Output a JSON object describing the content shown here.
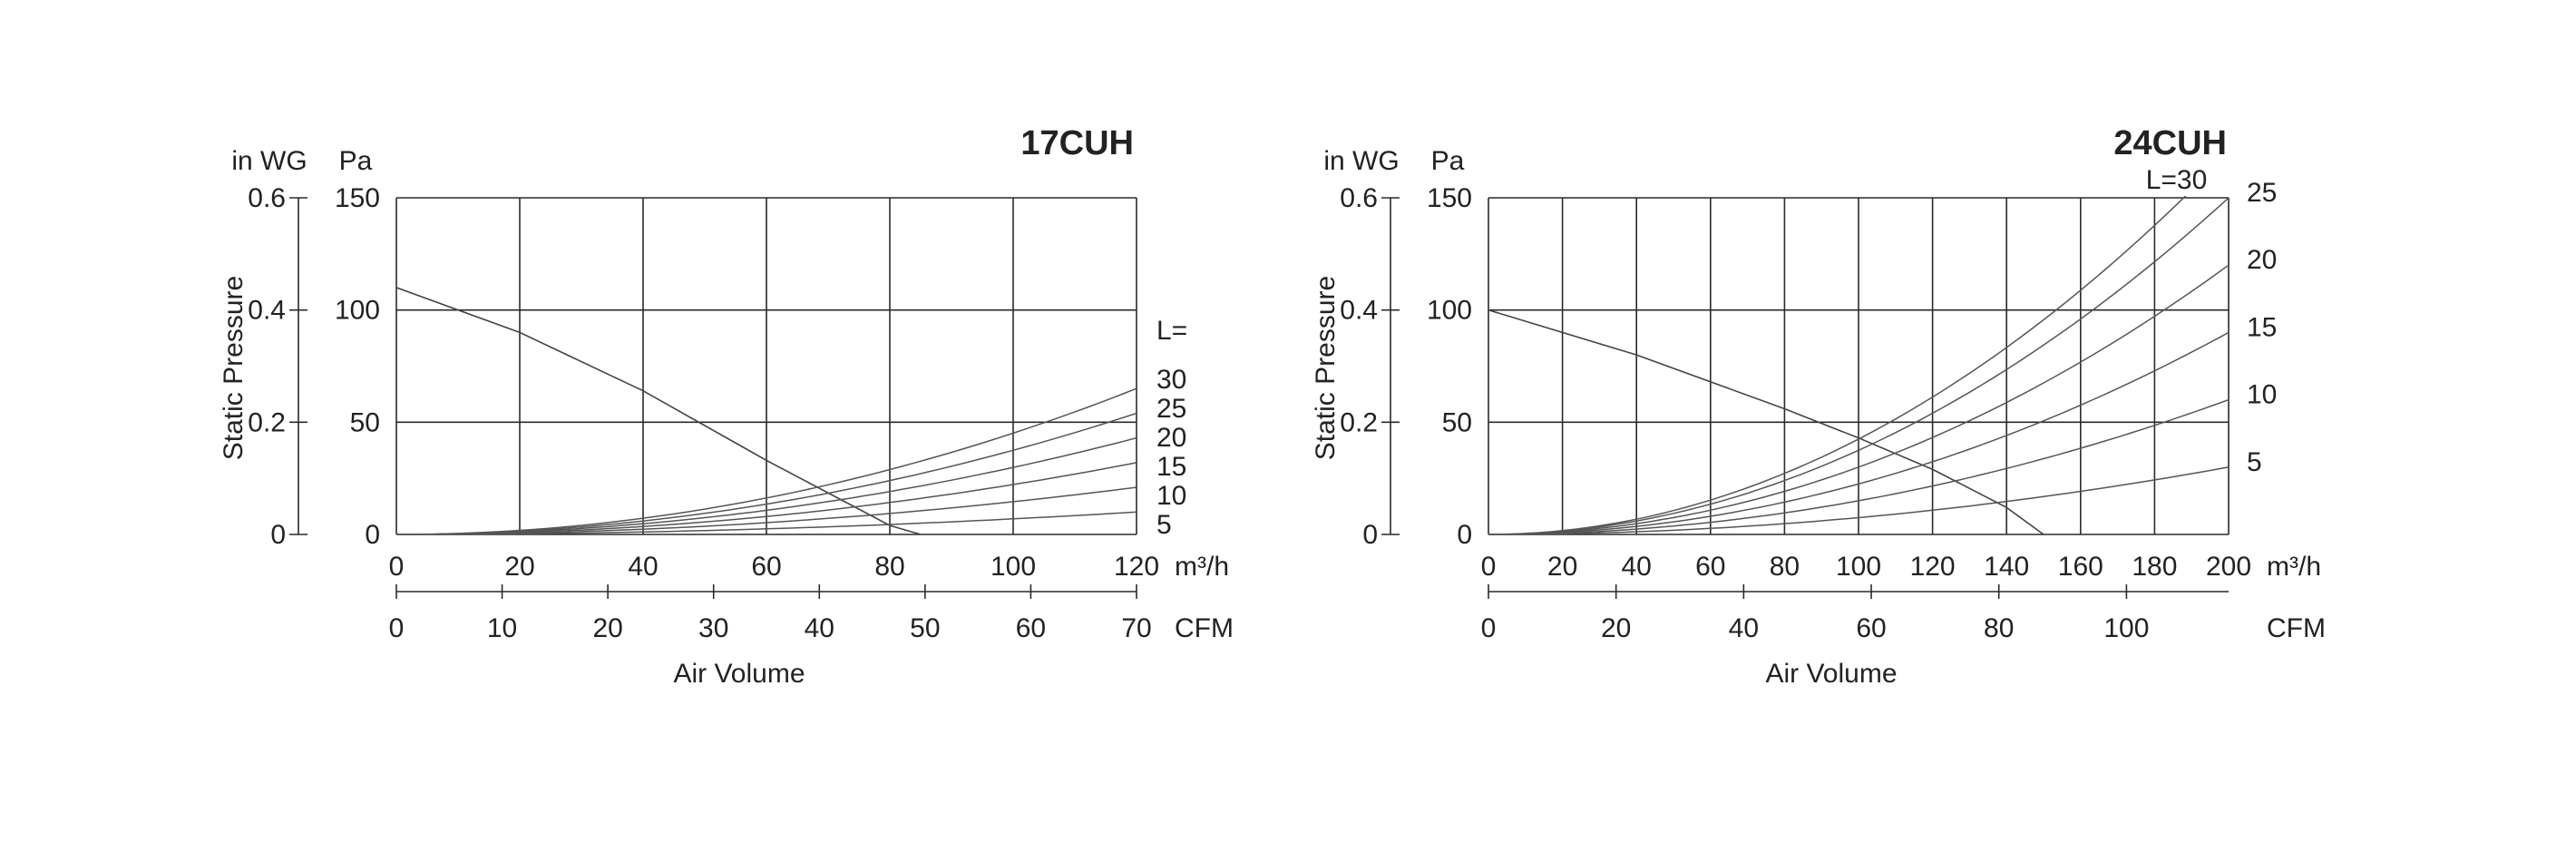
{
  "chart_data": [
    {
      "type": "line",
      "title": "17CUH",
      "left_axis_unit": "in WG",
      "pressure_unit": "Pa",
      "ylabel": "Static Pressure",
      "xlabel": "Air Volume",
      "x_unit_m3h": "m³/h",
      "x_unit_cfm": "CFM",
      "x_m3h_ticks": [
        "0",
        "20",
        "40",
        "60",
        "80",
        "100",
        "120"
      ],
      "x_cfm_ticks": [
        "0",
        "10",
        "20",
        "30",
        "40",
        "50",
        "60",
        "70"
      ],
      "y_pa_ticks": [
        "0",
        "50",
        "100",
        "150"
      ],
      "y_inwg_ticks": [
        "0",
        "0.2",
        "0.4",
        "0.6"
      ],
      "xlim_m3h": [
        0,
        120
      ],
      "ylim_pa": [
        0,
        150
      ],
      "duct_label_prefix": "L=",
      "fan_curve": {
        "x": [
          0,
          20,
          40,
          60,
          80,
          85
        ],
        "y": [
          110,
          90,
          64,
          33,
          4,
          0
        ]
      },
      "duct_curves": [
        {
          "label": "30",
          "end_value": 65
        },
        {
          "label": "25",
          "end_value": 54
        },
        {
          "label": "20",
          "end_value": 43
        },
        {
          "label": "15",
          "end_value": 32
        },
        {
          "label": "10",
          "end_value": 21
        },
        {
          "label": "5",
          "end_value": 10
        }
      ],
      "grid": true
    },
    {
      "type": "line",
      "title": "24CUH",
      "left_axis_unit": "in WG",
      "pressure_unit": "Pa",
      "ylabel": "Static Pressure",
      "xlabel": "Air Volume",
      "x_unit_m3h": "m³/h",
      "x_unit_cfm": "CFM",
      "x_m3h_ticks": [
        "0",
        "20",
        "40",
        "60",
        "80",
        "100",
        "120",
        "140",
        "160",
        "180",
        "200"
      ],
      "x_cfm_ticks": [
        "0",
        "20",
        "40",
        "60",
        "80",
        "100"
      ],
      "y_pa_ticks": [
        "0",
        "50",
        "100",
        "150"
      ],
      "y_inwg_ticks": [
        "0",
        "0.2",
        "0.4",
        "0.6"
      ],
      "xlim_m3h": [
        0,
        200
      ],
      "ylim_pa": [
        0,
        150
      ],
      "duct_label_prefix": "L=",
      "fan_curve": {
        "x": [
          0,
          40,
          80,
          100,
          120,
          140,
          150
        ],
        "y": [
          100,
          80,
          56,
          43,
          29,
          12,
          0
        ]
      },
      "duct_curves": [
        {
          "label": "30",
          "end_value": 170
        },
        {
          "label": "25",
          "end_value": 150
        },
        {
          "label": "20",
          "end_value": 120
        },
        {
          "label": "15",
          "end_value": 90
        },
        {
          "label": "10",
          "end_value": 60
        },
        {
          "label": "5",
          "end_value": 30
        }
      ],
      "grid": true
    }
  ]
}
